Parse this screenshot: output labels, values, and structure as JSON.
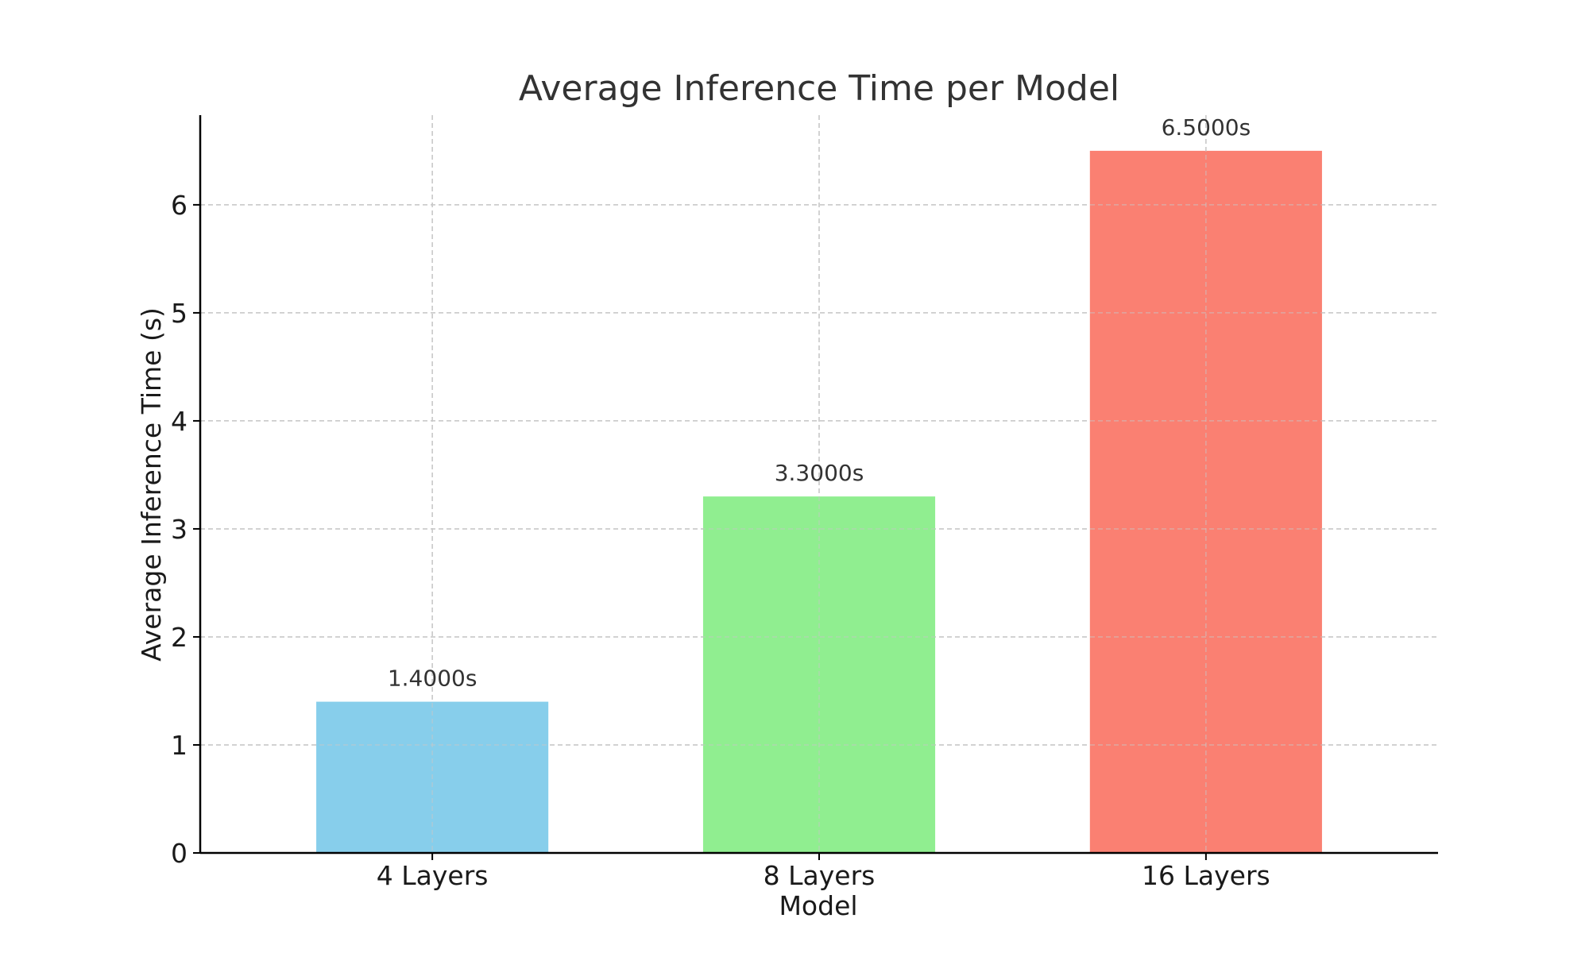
{
  "chart_data": {
    "type": "bar",
    "title": "Average Inference Time per Model",
    "xlabel": "Model",
    "ylabel": "Average Inference Time (s)",
    "categories": [
      "4 Layers",
      "8 Layers",
      "16 Layers"
    ],
    "values": [
      1.4,
      3.3,
      6.5
    ],
    "data_labels": [
      "1.4000s",
      "3.3000s",
      "6.5000s"
    ],
    "colors": [
      "#87CEEB",
      "#90EE90",
      "#FA8072"
    ],
    "ylim": [
      0,
      6.83
    ],
    "yticks": [
      0,
      1,
      2,
      3,
      4,
      5,
      6
    ],
    "grid": true,
    "legend": "none"
  }
}
